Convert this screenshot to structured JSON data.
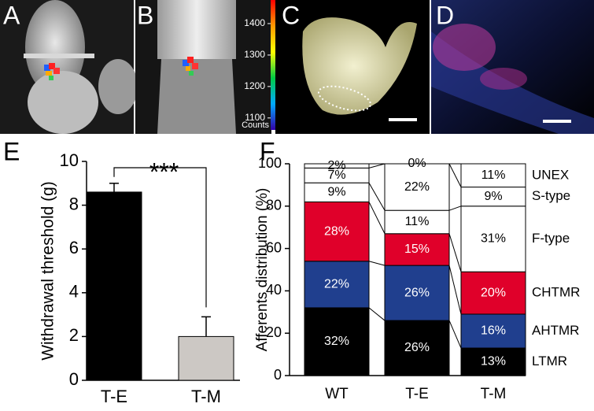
{
  "panels": {
    "labels": [
      "A",
      "B",
      "C",
      "D",
      "E",
      "F"
    ],
    "colorbar": {
      "clim": [
        1062,
        1475
      ],
      "ticks": [
        1400,
        1300,
        1200,
        1100
      ],
      "label": "Counts"
    }
  },
  "chart_data": [
    {
      "type": "bar",
      "ylabel": "Withdrawal threshold (g)",
      "categories": [
        "T-E",
        "T-M"
      ],
      "values": [
        8.6,
        2.0
      ],
      "errors": [
        0.4,
        0.9
      ],
      "colors": [
        "#000000",
        "#ccc8c4"
      ],
      "ylim": [
        0,
        10
      ],
      "yticks": [
        0,
        2,
        4,
        6,
        8,
        10
      ],
      "annotation": "***"
    },
    {
      "type": "stacked_bar",
      "ylabel": "Afferents distribution (%)",
      "categories": [
        "WT",
        "T-E",
        "T-M"
      ],
      "ylim": [
        0,
        100
      ],
      "yticks": [
        0,
        20,
        40,
        60,
        80,
        100
      ],
      "series": [
        {
          "name": "LTMR",
          "color": "#000000",
          "values": [
            32,
            26,
            13
          ],
          "value_labels": [
            "32%",
            "26%",
            "13%"
          ]
        },
        {
          "name": "AHTMR",
          "color": "#203f8e",
          "values": [
            22,
            26,
            16
          ],
          "value_labels": [
            "22%",
            "26%",
            "16%"
          ]
        },
        {
          "name": "CHTMR",
          "color": "#e0002a",
          "values": [
            28,
            15,
            20
          ],
          "value_labels": [
            "28%",
            "15%",
            "20%"
          ]
        },
        {
          "name": "F-type",
          "color": "#ffffff",
          "values": [
            9,
            11,
            31
          ],
          "value_labels": [
            "9%",
            "11%",
            "31%"
          ]
        },
        {
          "name": "S-type",
          "color": "#ffffff",
          "values": [
            7,
            22,
            9
          ],
          "value_labels": [
            "7%",
            "22%",
            "9%"
          ]
        },
        {
          "name": "UNEX",
          "color": "#ffffff",
          "values": [
            2,
            0,
            11
          ],
          "value_labels": [
            "2%",
            "0%",
            "11%"
          ]
        }
      ]
    }
  ]
}
